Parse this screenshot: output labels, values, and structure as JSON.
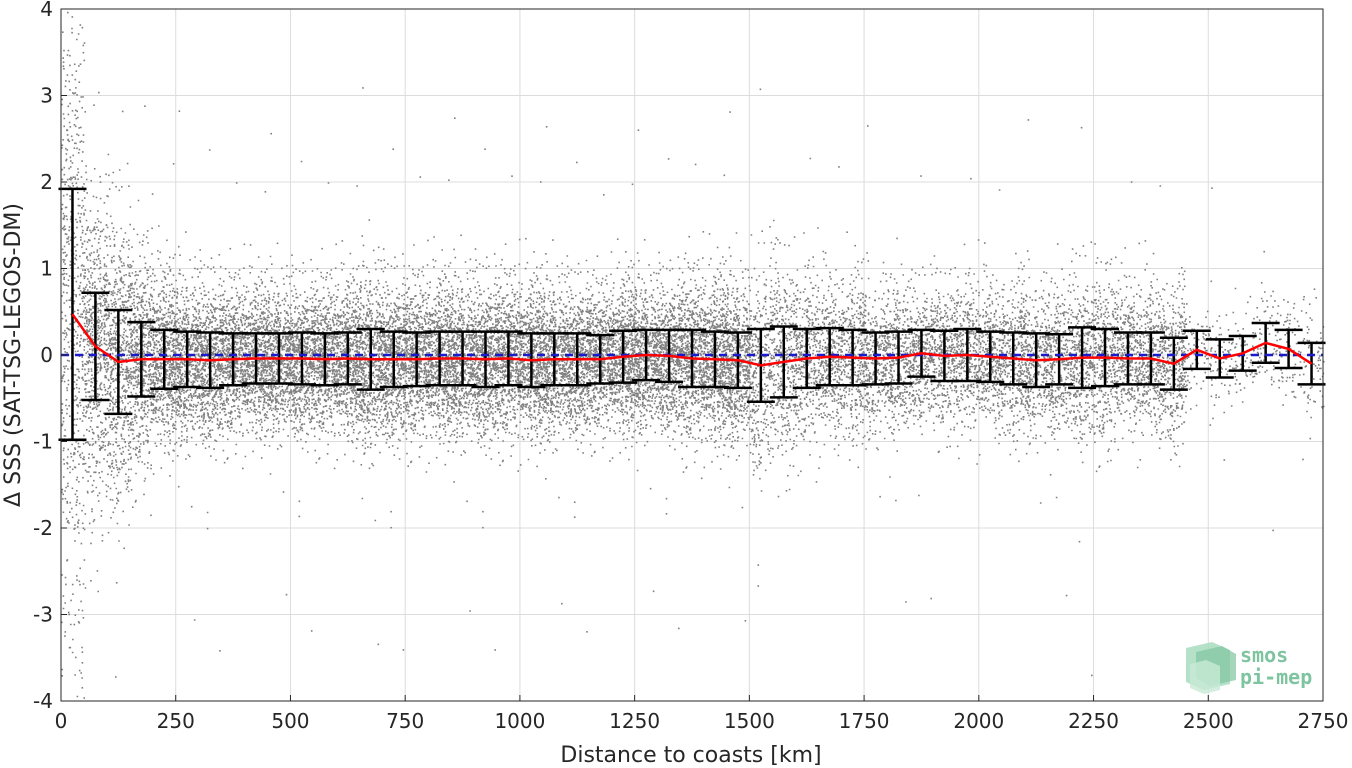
{
  "chart_data": {
    "type": "scatter",
    "title": "",
    "xlabel": "Distance to coasts [km]",
    "ylabel": "Δ SSS (SAT-TSG-LEGOS-DM)",
    "xlim": [
      0,
      2750
    ],
    "ylim": [
      -4,
      4
    ],
    "xticks": [
      0,
      250,
      500,
      750,
      1000,
      1250,
      1500,
      1750,
      2000,
      2250,
      2500,
      2750
    ],
    "yticks": [
      -4,
      -3,
      -2,
      -1,
      0,
      1,
      2,
      3,
      4
    ],
    "grid": true,
    "zero_line": {
      "y": 0,
      "style": "dashed",
      "color": "#1a1acc"
    },
    "colors": {
      "scatter": "#808080",
      "mean_line": "#ff0000",
      "error_bars": "#000000",
      "zero_line": "#1a1acc"
    },
    "series": [
      {
        "kind": "binned_mean_with_std",
        "x": [
          25,
          75,
          125,
          175,
          225,
          275,
          325,
          375,
          425,
          475,
          525,
          575,
          625,
          675,
          725,
          775,
          825,
          875,
          925,
          975,
          1025,
          1075,
          1125,
          1175,
          1225,
          1275,
          1325,
          1375,
          1425,
          1475,
          1525,
          1575,
          1625,
          1675,
          1725,
          1775,
          1825,
          1875,
          1925,
          1975,
          2025,
          2075,
          2125,
          2175,
          2225,
          2275,
          2325,
          2375,
          2425,
          2475,
          2525,
          2575,
          2625,
          2675,
          2725
        ],
        "mean": [
          0.47,
          0.1,
          -0.08,
          -0.05,
          -0.05,
          -0.05,
          -0.06,
          -0.05,
          -0.04,
          -0.04,
          -0.04,
          -0.05,
          -0.04,
          -0.05,
          -0.05,
          -0.05,
          -0.04,
          -0.04,
          -0.05,
          -0.04,
          -0.06,
          -0.05,
          -0.05,
          -0.05,
          -0.02,
          0.0,
          -0.01,
          -0.04,
          -0.05,
          -0.06,
          -0.12,
          -0.08,
          -0.04,
          -0.02,
          -0.03,
          -0.04,
          -0.03,
          0.02,
          -0.01,
          0.0,
          -0.02,
          -0.04,
          -0.06,
          -0.05,
          -0.03,
          -0.03,
          -0.04,
          -0.04,
          -0.1,
          0.06,
          -0.04,
          0.02,
          0.14,
          0.07,
          -0.1
        ],
        "std": [
          1.45,
          0.62,
          0.6,
          0.43,
          0.34,
          0.32,
          0.32,
          0.3,
          0.29,
          0.29,
          0.3,
          0.3,
          0.3,
          0.35,
          0.32,
          0.31,
          0.31,
          0.31,
          0.32,
          0.31,
          0.31,
          0.3,
          0.3,
          0.28,
          0.3,
          0.29,
          0.3,
          0.33,
          0.32,
          0.32,
          0.42,
          0.41,
          0.34,
          0.33,
          0.32,
          0.3,
          0.3,
          0.27,
          0.29,
          0.3,
          0.29,
          0.3,
          0.31,
          0.29,
          0.35,
          0.33,
          0.3,
          0.3,
          0.3,
          0.22,
          0.22,
          0.2,
          0.23,
          0.22,
          0.24
        ]
      }
    ],
    "scatter_note_x_extent": [
      0,
      2750
    ]
  },
  "logo": {
    "line1": "smos",
    "line2": "pi-mep"
  }
}
